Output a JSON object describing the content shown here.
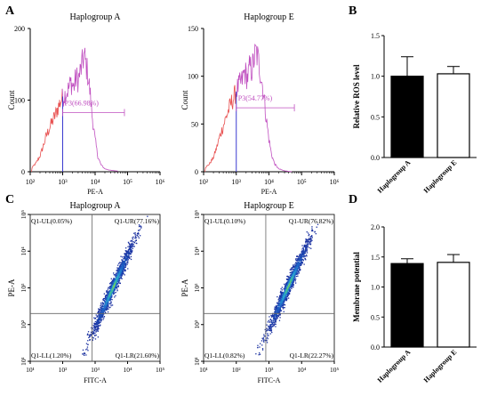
{
  "panels": {
    "A": "A",
    "B": "B",
    "C": "C",
    "D": "D"
  },
  "colors": {
    "histogram_line": "#e85050",
    "gate_color": "#c050c0",
    "marker_line": "#3a3ad0",
    "quadrant_line": "#666666",
    "bar_black": "#000000",
    "bar_white": "#ffffff",
    "density_low": "#1a3fb0",
    "density_mid": "#2fa8d8",
    "density_high": "#d8e020"
  },
  "chart_data": [
    {
      "id": "histogram-haplogroup-a",
      "type": "area",
      "title": "Haplogroup A",
      "xlabel": "PE-A",
      "ylabel": "Count",
      "x_scale": "log",
      "xlim": [
        100,
        1000000
      ],
      "ylim": [
        0,
        200
      ],
      "x_tick_labels": [
        "10²",
        "10³",
        "10⁴",
        "10⁵",
        "10⁶"
      ],
      "y_ticks": [
        0,
        100,
        200
      ],
      "gate_label": "P3(66.98%)",
      "gate_range": [
        1000,
        80000
      ],
      "gate_y": 100,
      "x": [
        110,
        150,
        200,
        250,
        300,
        400,
        500,
        600,
        700,
        800,
        900,
        1000,
        1200,
        1500,
        1800,
        2200,
        2600,
        3000,
        3500,
        4000,
        4500,
        5000,
        6000,
        7000,
        8000,
        10000,
        12000,
        15000,
        20000,
        30000,
        50000
      ],
      "y": [
        5,
        12,
        22,
        35,
        48,
        62,
        72,
        80,
        88,
        95,
        100,
        104,
        108,
        115,
        125,
        118,
        132,
        128,
        140,
        150,
        162,
        155,
        135,
        110,
        80,
        45,
        22,
        10,
        4,
        2,
        1
      ]
    },
    {
      "id": "histogram-haplogroup-e",
      "type": "area",
      "title": "Haplogroup E",
      "xlabel": "PE-A",
      "ylabel": "Count",
      "x_scale": "log",
      "xlim": [
        100,
        1000000
      ],
      "ylim": [
        0,
        150
      ],
      "x_tick_labels": [
        "10²",
        "10³",
        "10⁴",
        "10⁵",
        "10⁶"
      ],
      "y_ticks": [
        0,
        50,
        100,
        150
      ],
      "gate_label": "P3(54.77%)",
      "gate_range": [
        1000,
        60000
      ],
      "gate_y": 80,
      "x": [
        110,
        150,
        200,
        250,
        300,
        400,
        500,
        600,
        700,
        800,
        900,
        1000,
        1200,
        1500,
        1800,
        2200,
        2600,
        3000,
        3500,
        4000,
        4500,
        5000,
        6000,
        7000,
        8000,
        10000,
        12000,
        15000,
        20000,
        30000,
        50000
      ],
      "y": [
        4,
        8,
        15,
        25,
        35,
        48,
        58,
        66,
        72,
        76,
        80,
        85,
        90,
        95,
        105,
        98,
        110,
        106,
        118,
        125,
        120,
        112,
        96,
        80,
        60,
        34,
        18,
        8,
        3,
        1,
        0
      ]
    },
    {
      "id": "bar-relative-ros",
      "type": "bar",
      "categories": [
        "Haplogroup A",
        "Haplogroup E"
      ],
      "values": [
        1.0,
        1.03
      ],
      "errors": [
        0.24,
        0.09
      ],
      "ylabel": "Relative ROS level",
      "ylim": [
        0,
        1.5
      ],
      "y_ticks": [
        "0.0",
        "0.5",
        "1.0",
        "1.5"
      ],
      "fills": [
        "#000000",
        "#ffffff"
      ]
    },
    {
      "id": "scatter-haplogroup-a",
      "type": "scatter",
      "title": "Haplogroup A",
      "xlabel": "FITC-A",
      "ylabel": "PE-A",
      "x_scale": "log",
      "y_scale": "log",
      "xlim": [
        10,
        100000
      ],
      "ylim": [
        10,
        100000
      ],
      "tick_labels": [
        "10¹",
        "10²",
        "10³",
        "10⁴",
        "10⁵"
      ],
      "quadrant_x": 800,
      "quadrant_y": 200,
      "quadrants": {
        "UL": "Q1-UL(0.05%)",
        "UR": "Q1-UR(77.16%)",
        "LL": "Q1-LL(1.20%)",
        "LR": "Q1-LR(21.60%)"
      }
    },
    {
      "id": "scatter-haplogroup-e",
      "type": "scatter",
      "title": "Haplogroup E",
      "xlabel": "FITC-A",
      "ylabel": "PE-A",
      "x_scale": "log",
      "y_scale": "log",
      "xlim": [
        10,
        100000
      ],
      "ylim": [
        10,
        100000
      ],
      "tick_labels": [
        "10¹",
        "10²",
        "10³",
        "10⁴",
        "10⁵"
      ],
      "quadrant_x": 800,
      "quadrant_y": 200,
      "quadrants": {
        "UL": "Q1-UL(0.10%)",
        "UR": "Q1-UR(76.82%)",
        "LL": "Q1-LL(0.82%)",
        "LR": "Q1-LR(22.27%)"
      }
    },
    {
      "id": "bar-membrane-potential",
      "type": "bar",
      "categories": [
        "Haplogroup A",
        "Haplogroup E"
      ],
      "values": [
        1.39,
        1.41
      ],
      "errors": [
        0.08,
        0.13
      ],
      "ylabel": "Membrane potential",
      "ylim": [
        0,
        2.0
      ],
      "y_ticks": [
        "0.0",
        "0.5",
        "1.0",
        "1.5",
        "2.0"
      ],
      "fills": [
        "#000000",
        "#ffffff"
      ]
    }
  ]
}
